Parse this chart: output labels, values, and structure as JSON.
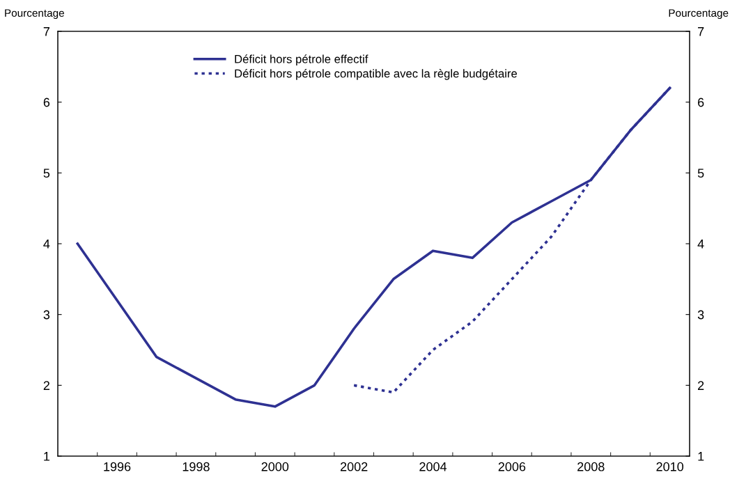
{
  "chart_data": {
    "type": "line",
    "ylabel": "Pourcentage",
    "y2label": "Pourcentage",
    "x": [
      1995,
      1996,
      1997,
      1998,
      1999,
      2000,
      2001,
      2002,
      2003,
      2004,
      2005,
      2006,
      2007,
      2008,
      2009,
      2010
    ],
    "series": [
      {
        "name": "Déficit hors pétrole effectif",
        "color": "#2e3192",
        "line_style": "solid",
        "values": [
          4.0,
          3.2,
          2.4,
          2.1,
          1.8,
          1.7,
          2.0,
          2.8,
          3.5,
          3.9,
          3.8,
          4.3,
          4.6,
          4.9,
          5.6,
          6.2
        ]
      },
      {
        "name": "Déficit hors pétrole compatible avec la règle budgétaire",
        "color": "#2e3192",
        "line_style": "dotted",
        "values": [
          null,
          null,
          null,
          null,
          null,
          null,
          null,
          2.0,
          1.9,
          2.5,
          2.9,
          3.5,
          4.1,
          4.9,
          5.6,
          6.2
        ]
      }
    ],
    "xlim": [
      1994.5,
      2010.5
    ],
    "xticks": [
      {
        "value": 1995.5,
        "label": null
      },
      {
        "value": 1996,
        "label": "1996"
      },
      {
        "value": 1996.5,
        "label": null
      },
      {
        "value": 1997.5,
        "label": null
      },
      {
        "value": 1998,
        "label": "1998"
      },
      {
        "value": 1998.5,
        "label": null
      },
      {
        "value": 1999.5,
        "label": null
      },
      {
        "value": 2000,
        "label": "2000"
      },
      {
        "value": 2000.5,
        "label": null
      },
      {
        "value": 2001.5,
        "label": null
      },
      {
        "value": 2002,
        "label": "2002"
      },
      {
        "value": 2002.5,
        "label": null
      },
      {
        "value": 2003.5,
        "label": null
      },
      {
        "value": 2004,
        "label": "2004"
      },
      {
        "value": 2004.5,
        "label": null
      },
      {
        "value": 2005.5,
        "label": null
      },
      {
        "value": 2006,
        "label": "2006"
      },
      {
        "value": 2006.5,
        "label": null
      },
      {
        "value": 2007.5,
        "label": null
      },
      {
        "value": 2008,
        "label": "2008"
      },
      {
        "value": 2008.5,
        "label": null
      },
      {
        "value": 2009.5,
        "label": null
      },
      {
        "value": 2010,
        "label": "2010"
      }
    ],
    "ylim": [
      1,
      7
    ],
    "yticks": [
      1,
      2,
      3,
      4,
      5,
      6,
      7
    ],
    "y2lim": [
      1,
      7
    ],
    "y2ticks": [
      1,
      2,
      3,
      4,
      5,
      6,
      7
    ],
    "grid": false,
    "legend": "top left",
    "marker": "none"
  }
}
